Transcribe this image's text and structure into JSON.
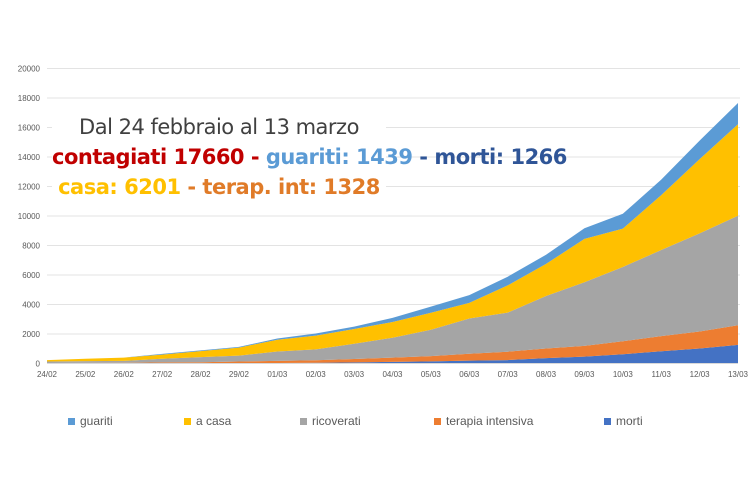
{
  "chart_data": {
    "type": "area",
    "stacked": true,
    "categories": [
      "24/02",
      "25/02",
      "26/02",
      "27/02",
      "28/02",
      "29/02",
      "01/03",
      "02/03",
      "03/03",
      "04/03",
      "05/03",
      "06/03",
      "07/03",
      "08/03",
      "09/03",
      "10/03",
      "11/03",
      "12/03",
      "13/03"
    ],
    "series": [
      {
        "name": "morti",
        "color": "#4472C4",
        "values": [
          7,
          10,
          12,
          17,
          21,
          29,
          34,
          52,
          79,
          107,
          148,
          197,
          233,
          366,
          463,
          631,
          827,
          1016,
          1266
        ]
      },
      {
        "name": "terapia intensiva",
        "color": "#ED7D31",
        "values": [
          26,
          35,
          36,
          56,
          64,
          105,
          140,
          166,
          229,
          295,
          351,
          462,
          567,
          650,
          733,
          877,
          1028,
          1153,
          1328
        ]
      },
      {
        "name": "ricoverati",
        "color": "#A5A5A5",
        "values": [
          101,
          114,
          128,
          248,
          345,
          401,
          639,
          742,
          1034,
          1346,
          1790,
          2394,
          2651,
          3557,
          4316,
          5038,
          5838,
          6650,
          7426
        ]
      },
      {
        "name": "a casa",
        "color": "#FFC000",
        "values": [
          94,
          162,
          221,
          284,
          412,
          543,
          798,
          927,
          1000,
          1065,
          1155,
          1060,
          1843,
          2180,
          2936,
          2599,
          3724,
          5036,
          6201
        ]
      },
      {
        "name": "guariti",
        "color": "#5B9BD5",
        "values": [
          1,
          1,
          3,
          45,
          46,
          50,
          83,
          149,
          160,
          276,
          414,
          523,
          589,
          622,
          724,
          1004,
          1045,
          1258,
          1439
        ]
      }
    ],
    "legend_order": [
      "guariti",
      "a casa",
      "ricoverati",
      "terapia intensiva",
      "morti"
    ],
    "ylim": [
      0,
      20000
    ],
    "yticks": [
      "0",
      "2000",
      "4000",
      "6000",
      "8000",
      "10000",
      "12000",
      "14000",
      "16000",
      "18000",
      "20000"
    ],
    "grid": true,
    "legend_placement": "bottom",
    "annotation": {
      "line1": "Dal 24 febbraio al 13 marzo",
      "contagiati": "contagiati 17660",
      "sep": " - ",
      "guariti": "guariti: 1439",
      "morti": "morti: 1266",
      "casa": "casa: 6201",
      "terap": "terap. int: 1328",
      "colors": {
        "contagiati": "#C00000",
        "guariti": "#5B9BD5",
        "morti": "#2F5597",
        "casa": "#FFC000",
        "terap": "#E07B28",
        "sep": "#C00000"
      }
    }
  }
}
